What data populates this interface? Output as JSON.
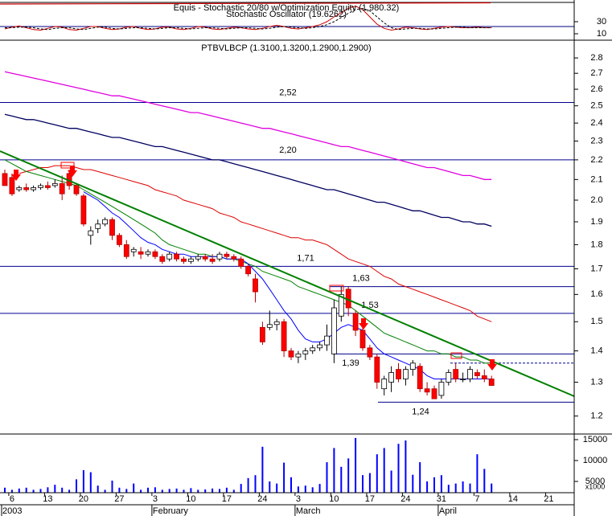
{
  "chart_data": [
    {
      "type": "line",
      "title": "Equis - Stochastic 20/80  w/Optimization Equity (1,980.32)",
      "subtitle": "Stochastic Oscillator (19.6262)",
      "ylim": [
        0,
        66
      ],
      "yticks": [
        10,
        30
      ],
      "series": [
        {
          "name": "%K",
          "color": "#cc0000",
          "dash": false,
          "values": [
            18,
            21,
            23,
            20,
            17,
            16,
            19,
            22,
            21,
            17,
            16,
            19,
            22,
            22,
            19,
            17,
            18,
            21,
            22,
            19,
            17,
            18,
            21,
            21,
            18,
            17,
            19,
            22,
            21,
            18,
            17,
            19,
            21,
            20,
            18,
            17,
            19,
            22,
            24,
            22,
            19,
            18,
            20,
            22,
            25,
            30,
            38,
            45,
            52,
            56,
            50,
            38,
            26,
            19,
            16,
            18,
            21,
            20,
            18,
            17,
            19,
            21,
            22,
            21,
            20,
            20,
            21,
            20,
            20,
            null,
            null,
            null,
            null,
            null,
            null,
            null,
            null
          ]
        },
        {
          "name": "%D",
          "color": "#000000",
          "dash": true,
          "values": [
            20,
            20,
            21,
            21,
            20,
            18,
            17,
            19,
            20,
            20,
            18,
            17,
            19,
            21,
            21,
            19,
            18,
            19,
            20,
            20,
            19,
            18,
            19,
            20,
            20,
            19,
            18,
            19,
            20,
            20,
            19,
            18,
            19,
            20,
            20,
            19,
            18,
            19,
            21,
            22,
            21,
            20,
            19,
            20,
            22,
            25,
            30,
            37,
            44,
            50,
            52,
            48,
            38,
            28,
            20,
            17,
            18,
            19,
            19,
            18,
            18,
            19,
            20,
            21,
            21,
            20,
            20,
            20,
            20,
            null,
            null,
            null,
            null,
            null,
            null,
            null,
            null
          ]
        }
      ]
    },
    {
      "type": "candlestick",
      "title": "PTBVLBCP (1.3100,1.3200,1.2900,1.2900)",
      "log_scale": true,
      "ylim": [
        1.15,
        2.92
      ],
      "yticks": [
        1.2,
        1.3,
        1.4,
        1.5,
        1.6,
        1.7,
        1.8,
        1.9,
        {
          "value": 2,
          "label": "2.0"
        },
        2.1,
        2.2,
        2.3,
        2.4,
        2.5,
        2.6,
        2.7,
        2.8
      ],
      "up_color": "#ffffff",
      "down_color": "#ff0000",
      "open": [
        2.13,
        2.11,
        2.05,
        2.06,
        2.05,
        2.06,
        2.07,
        2.07,
        2.08,
        2.13,
        2.07,
        2.02,
        1.84,
        1.87,
        1.89,
        1.91,
        1.84,
        1.8,
        1.77,
        1.77,
        1.76,
        1.77,
        1.75,
        1.74,
        1.76,
        1.74,
        1.73,
        1.74,
        1.75,
        1.74,
        1.74,
        1.76,
        1.75,
        1.74,
        1.71,
        1.66,
        1.48,
        1.48,
        1.49,
        1.5,
        1.4,
        1.38,
        1.39,
        1.4,
        1.41,
        1.42,
        1.39,
        1.52,
        1.62,
        1.53,
        1.47,
        1.41,
        1.38,
        1.28,
        1.3,
        1.34,
        1.31,
        1.34,
        1.35,
        1.28,
        1.28,
        1.26,
        1.3,
        1.34,
        1.31,
        1.31,
        1.33,
        1.32,
        1.31,
        null,
        null,
        null,
        null,
        null,
        null,
        null,
        null
      ],
      "high": [
        2.15,
        2.13,
        2.07,
        2.08,
        2.07,
        2.08,
        2.09,
        2.1,
        2.12,
        2.15,
        2.08,
        2.03,
        1.88,
        1.91,
        1.92,
        1.92,
        1.85,
        1.82,
        1.79,
        1.79,
        1.78,
        1.78,
        1.76,
        1.77,
        1.77,
        1.75,
        1.75,
        1.76,
        1.76,
        1.76,
        1.77,
        1.77,
        1.76,
        1.75,
        1.72,
        1.68,
        1.5,
        1.54,
        1.51,
        1.51,
        1.41,
        1.4,
        1.41,
        1.42,
        1.43,
        1.49,
        1.58,
        1.63,
        1.63,
        1.54,
        1.48,
        1.42,
        1.39,
        1.32,
        1.35,
        1.36,
        1.35,
        1.37,
        1.36,
        1.3,
        1.29,
        1.31,
        1.34,
        1.36,
        1.33,
        1.35,
        1.34,
        1.34,
        1.32,
        null,
        null,
        null,
        null,
        null,
        null,
        null,
        null
      ],
      "low": [
        2.07,
        2.02,
        2.04,
        2.04,
        2.04,
        2.05,
        2.05,
        2.06,
        2.0,
        2.05,
        2.02,
        1.88,
        1.8,
        1.85,
        1.88,
        1.82,
        1.79,
        1.74,
        1.75,
        1.74,
        1.75,
        1.74,
        1.72,
        1.73,
        1.73,
        1.72,
        1.72,
        1.73,
        1.73,
        1.72,
        1.73,
        1.74,
        1.73,
        1.7,
        1.67,
        1.57,
        1.42,
        1.47,
        1.47,
        1.38,
        1.37,
        1.36,
        1.37,
        1.39,
        1.4,
        1.4,
        1.36,
        1.5,
        1.52,
        1.45,
        1.4,
        1.37,
        1.28,
        1.26,
        1.27,
        1.3,
        1.29,
        1.32,
        1.27,
        1.26,
        1.25,
        1.25,
        1.29,
        1.3,
        1.3,
        1.3,
        1.31,
        1.3,
        1.29,
        null,
        null,
        null,
        null,
        null,
        null,
        null,
        null
      ],
      "close": [
        2.07,
        2.03,
        2.06,
        2.05,
        2.06,
        2.07,
        2.06,
        2.08,
        2.03,
        2.07,
        2.03,
        1.89,
        1.86,
        1.89,
        1.91,
        1.84,
        1.8,
        1.75,
        1.78,
        1.76,
        1.77,
        1.75,
        1.73,
        1.76,
        1.74,
        1.73,
        1.74,
        1.75,
        1.74,
        1.73,
        1.76,
        1.75,
        1.74,
        1.71,
        1.68,
        1.61,
        1.43,
        1.49,
        1.5,
        1.4,
        1.38,
        1.39,
        1.4,
        1.41,
        1.42,
        1.45,
        1.55,
        1.6,
        1.55,
        1.47,
        1.41,
        1.38,
        1.3,
        1.31,
        1.33,
        1.31,
        1.34,
        1.36,
        1.28,
        1.27,
        1.25,
        1.3,
        1.33,
        1.31,
        1.31,
        1.34,
        1.32,
        1.31,
        1.29,
        null,
        null,
        null,
        null,
        null,
        null,
        null,
        null
      ],
      "series": [
        {
          "color": "#e000e0",
          "width": 1.3,
          "values": [
            2.71,
            2.7,
            2.69,
            2.68,
            2.67,
            2.66,
            2.65,
            2.64,
            2.63,
            2.62,
            2.61,
            2.6,
            2.59,
            2.58,
            2.57,
            2.56,
            2.56,
            2.55,
            2.54,
            2.53,
            2.52,
            2.51,
            2.5,
            2.49,
            2.48,
            2.47,
            2.46,
            2.46,
            2.45,
            2.44,
            2.43,
            2.42,
            2.41,
            2.4,
            2.39,
            2.38,
            2.37,
            2.37,
            2.36,
            2.35,
            2.34,
            2.33,
            2.32,
            2.31,
            2.3,
            2.29,
            2.28,
            2.27,
            2.27,
            2.26,
            2.25,
            2.24,
            2.23,
            2.22,
            2.21,
            2.2,
            2.19,
            2.18,
            2.17,
            2.16,
            2.16,
            2.15,
            2.14,
            2.13,
            2.12,
            2.12,
            2.11,
            2.1,
            2.1,
            null,
            null,
            null,
            null,
            null,
            null,
            null,
            null
          ]
        },
        {
          "color": "#000060",
          "width": 1.3,
          "values": [
            2.45,
            2.44,
            2.43,
            2.42,
            2.42,
            2.41,
            2.4,
            2.39,
            2.38,
            2.37,
            2.37,
            2.36,
            2.35,
            2.34,
            2.33,
            2.32,
            2.32,
            2.31,
            2.3,
            2.29,
            2.28,
            2.27,
            2.27,
            2.26,
            2.25,
            2.24,
            2.23,
            2.22,
            2.21,
            2.2,
            2.2,
            2.19,
            2.18,
            2.17,
            2.16,
            2.15,
            2.14,
            2.13,
            2.12,
            2.11,
            2.1,
            2.09,
            2.08,
            2.07,
            2.06,
            2.05,
            2.05,
            2.04,
            2.03,
            2.02,
            2.01,
            2.0,
            1.99,
            1.99,
            1.98,
            1.97,
            1.96,
            1.95,
            1.95,
            1.94,
            1.93,
            1.92,
            1.92,
            1.91,
            1.9,
            1.9,
            1.89,
            1.89,
            1.88,
            null,
            null,
            null,
            null,
            null,
            null,
            null,
            null
          ]
        },
        {
          "color": "#dd0000",
          "width": 1,
          "values": [
            null,
            null,
            2.13,
            2.14,
            2.15,
            2.16,
            2.16,
            2.17,
            2.17,
            2.17,
            2.16,
            2.15,
            2.15,
            2.14,
            2.13,
            2.12,
            2.11,
            2.1,
            2.09,
            2.08,
            2.07,
            2.05,
            2.04,
            2.03,
            2.02,
            2.0,
            1.99,
            1.98,
            1.97,
            1.96,
            1.94,
            1.93,
            1.92,
            1.9,
            1.89,
            1.88,
            1.87,
            1.86,
            1.85,
            1.84,
            1.83,
            1.83,
            1.82,
            1.82,
            1.81,
            1.8,
            1.78,
            1.76,
            1.74,
            1.73,
            1.72,
            1.71,
            1.69,
            1.67,
            1.66,
            1.64,
            1.63,
            1.62,
            1.61,
            1.6,
            1.59,
            1.58,
            1.57,
            1.56,
            1.55,
            1.54,
            1.52,
            1.51,
            1.5,
            null,
            null,
            null,
            null,
            null,
            null,
            null,
            null
          ]
        },
        {
          "color": "#008000",
          "width": 1,
          "values": [
            2.2,
            2.18,
            2.16,
            2.14,
            2.13,
            2.12,
            2.11,
            2.1,
            2.09,
            2.08,
            2.07,
            2.05,
            2.03,
            2.01,
            1.99,
            1.97,
            1.95,
            1.93,
            1.91,
            1.89,
            1.87,
            1.85,
            1.82,
            1.8,
            1.79,
            1.78,
            1.77,
            1.76,
            1.76,
            1.75,
            1.75,
            1.74,
            1.74,
            1.73,
            1.72,
            1.71,
            1.69,
            1.68,
            1.67,
            1.66,
            1.65,
            1.63,
            1.62,
            1.61,
            1.6,
            1.59,
            1.58,
            1.57,
            1.56,
            1.54,
            1.52,
            1.5,
            1.48,
            1.46,
            1.45,
            1.44,
            1.43,
            1.42,
            1.41,
            1.4,
            1.4,
            1.39,
            1.39,
            1.38,
            1.38,
            1.37,
            1.37,
            1.36,
            1.36,
            null,
            null,
            null,
            null,
            null,
            null,
            null,
            null
          ]
        },
        {
          "color": "#0000ff",
          "width": 1,
          "values": [
            null,
            null,
            null,
            null,
            null,
            null,
            null,
            null,
            null,
            null,
            null,
            2.04,
            2.02,
            2.0,
            1.97,
            1.94,
            1.92,
            1.89,
            1.86,
            1.83,
            1.81,
            1.8,
            1.78,
            1.77,
            1.76,
            1.76,
            1.75,
            1.75,
            1.75,
            1.75,
            1.75,
            1.74,
            1.74,
            1.74,
            1.72,
            1.69,
            1.66,
            1.62,
            1.58,
            1.54,
            1.51,
            1.47,
            1.44,
            1.43,
            1.43,
            1.44,
            1.46,
            1.48,
            1.49,
            1.48,
            1.47,
            1.44,
            1.41,
            1.39,
            1.38,
            1.37,
            1.36,
            1.35,
            1.34,
            1.32,
            1.31,
            1.31,
            1.31,
            1.31,
            1.31,
            1.31,
            1.31,
            1.31,
            1.31,
            null,
            null,
            null,
            null,
            null,
            null,
            null,
            null
          ]
        }
      ],
      "levels": [
        {
          "value": 2.52,
          "label": "2,52"
        },
        {
          "value": 2.2,
          "label": "2,20"
        },
        {
          "value": 1.71,
          "label": "1,71"
        },
        {
          "value": 1.63,
          "label": "1,63"
        },
        {
          "value": 1.53,
          "label": "1,53"
        },
        {
          "value": 1.39,
          "label": "1,39"
        },
        {
          "value": 1.24,
          "label": "1,24"
        },
        {
          "value": 1.36,
          "style": "dashed"
        }
      ]
    },
    {
      "type": "bar",
      "color": "#0000ff",
      "ylim": [
        0,
        16150
      ],
      "yticks": [
        5000,
        10000,
        15000
      ],
      "unit_label": "x1000",
      "categories": [
        null,
        "6",
        null,
        null,
        null,
        null,
        "13",
        null,
        null,
        null,
        null,
        "20",
        null,
        null,
        null,
        null,
        "27",
        null,
        null,
        null,
        null,
        "3",
        null,
        null,
        null,
        null,
        "10",
        null,
        null,
        null,
        null,
        "17",
        null,
        null,
        null,
        null,
        "24",
        null,
        null,
        null,
        null,
        "3",
        null,
        null,
        null,
        null,
        "10",
        null,
        null,
        null,
        null,
        "17",
        null,
        null,
        null,
        null,
        "24",
        null,
        null,
        null,
        null,
        "31",
        null,
        null,
        null,
        null,
        "7",
        null,
        null,
        null,
        null,
        "14",
        null,
        null,
        null,
        null,
        "21"
      ],
      "months": [
        "2003",
        null,
        null,
        null,
        null,
        null,
        null,
        null,
        null,
        null,
        null,
        null,
        null,
        null,
        null,
        null,
        null,
        null,
        null,
        null,
        null,
        "February",
        null,
        null,
        null,
        null,
        null,
        null,
        null,
        null,
        null,
        null,
        null,
        null,
        null,
        null,
        null,
        null,
        null,
        null,
        null,
        "March",
        null,
        null,
        null,
        null,
        null,
        null,
        null,
        null,
        null,
        null,
        null,
        null,
        null,
        null,
        null,
        null,
        null,
        null,
        null,
        "April",
        null,
        null,
        null,
        null,
        null,
        null,
        null,
        null,
        null,
        null,
        null,
        null,
        null,
        null,
        null
      ],
      "values": [
        3500,
        3000,
        3300,
        3500,
        3000,
        3200,
        3600,
        4200,
        3500,
        3000,
        5500,
        7700,
        7200,
        4000,
        3000,
        5200,
        3500,
        3200,
        4500,
        3000,
        3500,
        3600,
        3000,
        3200,
        3300,
        3000,
        3400,
        3000,
        3100,
        3300,
        3200,
        3500,
        3000,
        4400,
        5800,
        6500,
        13300,
        5000,
        4500,
        9500,
        6000,
        3800,
        4000,
        3600,
        4400,
        9600,
        13000,
        8500,
        10500,
        15400,
        6500,
        7000,
        11500,
        13000,
        7600,
        14000,
        14800,
        6600,
        9600,
        5000,
        6000,
        6500,
        4200,
        4500,
        5000,
        4500,
        11500,
        8000,
        4500,
        null,
        null,
        null,
        null,
        null,
        null,
        null,
        null
      ]
    }
  ]
}
